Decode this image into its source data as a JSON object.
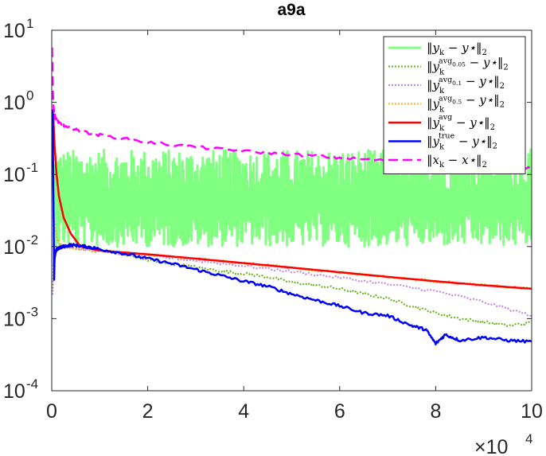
{
  "chart_data": {
    "type": "line",
    "title": "a9a",
    "xlabel": "",
    "ylabel": "",
    "x_scale_label": "×10",
    "x_scale_exponent": "4",
    "xlim": [
      0,
      10
    ],
    "ylim": [
      0.0001,
      10
    ],
    "yscale": "log",
    "grid": false,
    "legend_position": "top-right",
    "x_ticks": [
      {
        "value": 0,
        "label": "0"
      },
      {
        "value": 2,
        "label": "2"
      },
      {
        "value": 4,
        "label": "4"
      },
      {
        "value": 6,
        "label": "6"
      },
      {
        "value": 8,
        "label": "8"
      },
      {
        "value": 10,
        "label": "10"
      }
    ],
    "y_ticks": [
      {
        "value": 0.0001,
        "base": "10",
        "exp": "-4"
      },
      {
        "value": 0.001,
        "base": "10",
        "exp": "-3"
      },
      {
        "value": 0.01,
        "base": "10",
        "exp": "-2"
      },
      {
        "value": 0.1,
        "base": "10",
        "exp": "-1"
      },
      {
        "value": 1,
        "base": "10",
        "exp": "0"
      },
      {
        "value": 10,
        "base": "10",
        "exp": "1"
      }
    ],
    "series": [
      {
        "legend": {
          "pre": "‖y",
          "sub": "k",
          "sup": "",
          "sup_sub": "",
          "post": " − y⋆‖",
          "post_sub": "2"
        },
        "color": "#80ff80",
        "dash": "solid",
        "width": 3,
        "noisy": true,
        "noise_band": [
          0.01,
          0.22
        ],
        "x": [
          0.05,
          1,
          2,
          4,
          6,
          8,
          10
        ],
        "y": [
          0.05,
          0.04,
          0.04,
          0.04,
          0.04,
          0.04,
          0.04
        ]
      },
      {
        "legend": {
          "pre": "‖y",
          "sub": "k",
          "sup": "avg",
          "sup_sub": "0.05",
          "post": " − y⋆‖",
          "post_sub": "2"
        },
        "color": "#66b31a",
        "dash": "dotted",
        "width": 2,
        "noisy": false,
        "x": [
          0.02,
          0.04,
          0.1,
          0.2,
          0.5,
          1,
          1.5,
          2,
          2.5,
          3,
          3.5,
          4,
          4.5,
          5,
          5.5,
          6,
          6.5,
          7,
          7.5,
          8,
          8.5,
          9,
          9.5,
          10
        ],
        "y": [
          0.0025,
          0.006,
          0.009,
          0.0105,
          0.0108,
          0.009,
          0.0077,
          0.0065,
          0.0057,
          0.0052,
          0.0046,
          0.0042,
          0.0038,
          0.0032,
          0.0029,
          0.0026,
          0.0022,
          0.0019,
          0.0015,
          0.0012,
          0.001,
          0.0009,
          0.0008,
          0.00088
        ]
      },
      {
        "legend": {
          "pre": "‖y",
          "sub": "k",
          "sup": "avg",
          "sup_sub": "0.1",
          "post": " − y⋆‖",
          "post_sub": "2"
        },
        "color": "#c285e0",
        "dash": "dotted",
        "width": 2,
        "noisy": false,
        "x": [
          0.02,
          0.05,
          0.1,
          0.3,
          0.6,
          1,
          2,
          3,
          4,
          5,
          6,
          7,
          8,
          9,
          10
        ],
        "y": [
          0.0022,
          0.007,
          0.0098,
          0.0103,
          0.0092,
          0.0085,
          0.0074,
          0.0064,
          0.0054,
          0.0045,
          0.0037,
          0.003,
          0.0024,
          0.0017,
          0.0011
        ]
      },
      {
        "legend": {
          "pre": "‖y",
          "sub": "k",
          "sup": "avg",
          "sup_sub": "0.5",
          "post": " − y⋆‖",
          "post_sub": "2"
        },
        "color": "#f2b418",
        "dash": "dotted",
        "width": 2,
        "noisy": false,
        "x": [
          0.05,
          0.1,
          0.2,
          0.5,
          1,
          2,
          3,
          4,
          5,
          6,
          7,
          8,
          9,
          10
        ],
        "y": [
          0.025,
          0.013,
          0.01,
          0.0092,
          0.0088,
          0.0078,
          0.0068,
          0.0059,
          0.0051,
          0.0044,
          0.0038,
          0.0033,
          0.0029,
          0.0026
        ]
      },
      {
        "legend": {
          "pre": "‖y",
          "sub": "k",
          "sup": "avg",
          "sup_sub": "",
          "post": " − y⋆‖",
          "post_sub": "2"
        },
        "color": "#ff0000",
        "dash": "solid",
        "width": 2.5,
        "noisy": false,
        "x": [
          0.03,
          0.06,
          0.1,
          0.15,
          0.25,
          0.4,
          0.6,
          1,
          2,
          3,
          4,
          5,
          6,
          7,
          8,
          9,
          10
        ],
        "y": [
          0.7,
          0.25,
          0.1,
          0.05,
          0.025,
          0.015,
          0.01,
          0.0088,
          0.0078,
          0.0068,
          0.0059,
          0.0051,
          0.0044,
          0.0038,
          0.0033,
          0.0029,
          0.0026
        ]
      },
      {
        "legend": {
          "pre": "‖y",
          "sub": "k",
          "sup": "true",
          "sup_sub": "",
          "post": " − y⋆‖",
          "post_sub": "2"
        },
        "color": "#0000ff",
        "dash": "solid",
        "width": 2.5,
        "noisy": false,
        "x": [
          0.02,
          0.03,
          0.04,
          0.05,
          0.06,
          0.08,
          0.1,
          0.15,
          0.25,
          0.4,
          0.6,
          0.8,
          1,
          1.5,
          2,
          2.5,
          3,
          3.5,
          4,
          4.5,
          5,
          5.5,
          6,
          6.5,
          7,
          7.5,
          7.8,
          8,
          8.2,
          8.5,
          9,
          9.5,
          10
        ],
        "y": [
          0.8,
          0.1,
          0.02,
          0.0035,
          0.007,
          0.0085,
          0.009,
          0.0095,
          0.01,
          0.0105,
          0.0102,
          0.0098,
          0.0092,
          0.008,
          0.0068,
          0.0058,
          0.0048,
          0.004,
          0.0033,
          0.0028,
          0.0022,
          0.0018,
          0.0015,
          0.0012,
          0.0011,
          0.0008,
          0.0007,
          0.00045,
          0.0006,
          0.0005,
          0.00055,
          0.0005,
          0.00048
        ]
      },
      {
        "legend": {
          "pre": "‖x",
          "sub": "k",
          "sup": "",
          "sup_sub": "",
          "post": " − x⋆‖",
          "post_sub": "2"
        },
        "color": "#ff00ff",
        "dash": "dashed",
        "width": 2.5,
        "noisy": false,
        "x": [
          0.005,
          0.02,
          0.04,
          0.08,
          0.15,
          0.3,
          0.6,
          1,
          2,
          3,
          4,
          5,
          6,
          7,
          8,
          9,
          10
        ],
        "y": [
          6,
          1.5,
          0.8,
          0.6,
          0.52,
          0.45,
          0.4,
          0.35,
          0.28,
          0.24,
          0.21,
          0.19,
          0.17,
          0.155,
          0.145,
          0.13,
          0.12
        ]
      }
    ]
  }
}
